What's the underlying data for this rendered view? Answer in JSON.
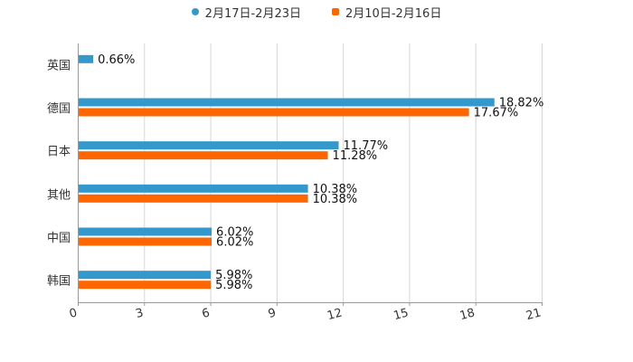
{
  "chart_data": {
    "type": "bar",
    "orientation": "horizontal",
    "categories": [
      "英国",
      "德国",
      "日本",
      "其他",
      "中国",
      "韩国"
    ],
    "series": [
      {
        "name": "2月17日-2月23日",
        "color": "#3399cc",
        "marker": "circle",
        "values": [
          0.66,
          18.82,
          11.77,
          10.38,
          6.02,
          5.98
        ],
        "labels": [
          "0.66%",
          "18.82%",
          "11.77%",
          "10.38%",
          "6.02%",
          "5.98%"
        ]
      },
      {
        "name": "2月10日-2月16日",
        "color": "#ff6600",
        "marker": "square",
        "values": [
          null,
          17.67,
          11.28,
          10.38,
          6.02,
          5.98
        ],
        "labels": [
          null,
          "17.67%",
          "11.28%",
          "10.38%",
          "6.02%",
          "5.98%"
        ]
      }
    ],
    "xlim": [
      0,
      21
    ],
    "xticks": [
      0,
      3,
      6,
      9,
      12,
      15,
      18,
      21
    ],
    "grid": true,
    "legend_position": "top-center",
    "title": "",
    "xlabel": "",
    "ylabel": ""
  }
}
